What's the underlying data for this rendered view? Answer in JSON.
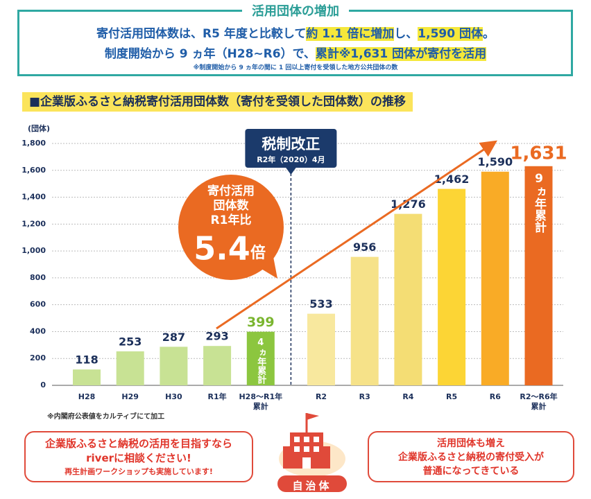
{
  "header": {
    "title": "活用団体の増加",
    "lines": [
      [
        "寄付活用団体数は、R5 年度と比較して",
        "約 1.1 倍に増加",
        "し、",
        "1,590 団体",
        "。"
      ],
      [
        "制度開始から 9 ヵ年（H28~R6）で、",
        "累計※1,631 団体が寄付を活用"
      ]
    ],
    "note": "※制度開始から 9 ヵ年の間に 1 回以上寄付を受領した地方公共団体の数"
  },
  "section_title": "■企業版ふるさと納税寄付活用団体数（寄付を受領した団体数）の推移",
  "chart_data": {
    "type": "bar",
    "y_label": "(団体)",
    "categories": [
      "H28",
      "H29",
      "H30",
      "R1年",
      "H28～R1年\n累計",
      "R2",
      "R3",
      "R4",
      "R5",
      "R6",
      "R2～R6年\n累計"
    ],
    "values": [
      118,
      253,
      287,
      293,
      399,
      533,
      956,
      1276,
      1462,
      1590,
      1631
    ],
    "value_labels": [
      "118",
      "253",
      "287",
      "293",
      "399",
      "533",
      "956",
      "1,276",
      "1,462",
      "1,590",
      "1,631"
    ],
    "colors": [
      "#c8e294",
      "#c8e294",
      "#c8e294",
      "#c8e294",
      "#8cc63f",
      "#f8e89e",
      "#f6e289",
      "#f4dd74",
      "#fcd535",
      "#f9ab26",
      "#ea6a22"
    ],
    "label_colors": [
      "#1b2f5a",
      "#1b2f5a",
      "#1b2f5a",
      "#1b2f5a",
      "#7ab52f",
      "#1b2f5a",
      "#1b2f5a",
      "#1b2f5a",
      "#1b2f5a",
      "#1b2f5a",
      "#ea6a22"
    ],
    "ylim": [
      0,
      1800
    ],
    "yticks": [
      0,
      200,
      400,
      600,
      800,
      {
        "value": 1000,
        "label": "1,000"
      },
      {
        "value": 1200,
        "label": "1,200"
      },
      {
        "value": 1400,
        "label": "1,400"
      },
      {
        "value": 1600,
        "label": "1,600"
      },
      {
        "value": 1800,
        "label": "1,800"
      }
    ],
    "grid": true,
    "bar_notes": [
      "4ヵ年累計",
      "9ヵ年累計"
    ],
    "tax_reform": {
      "title": "税制改正",
      "date": "R2年（2020）4月"
    },
    "callout": {
      "lines": [
        "寄付活用",
        "団体数",
        "R1年比"
      ],
      "ratio": "5.4",
      "unit": "倍"
    },
    "source": "※内閣府公表値をカルティブにて加工"
  },
  "footer": {
    "left": [
      "企業版ふるさと納税の活用を目指すなら",
      "riverに相談ください!",
      "再生計画ワークショップも実施しています!"
    ],
    "center": "自治体",
    "right": [
      "活用団体も増え",
      "企業版ふるさと納税の寄付受入が",
      "普通になってきている"
    ]
  }
}
